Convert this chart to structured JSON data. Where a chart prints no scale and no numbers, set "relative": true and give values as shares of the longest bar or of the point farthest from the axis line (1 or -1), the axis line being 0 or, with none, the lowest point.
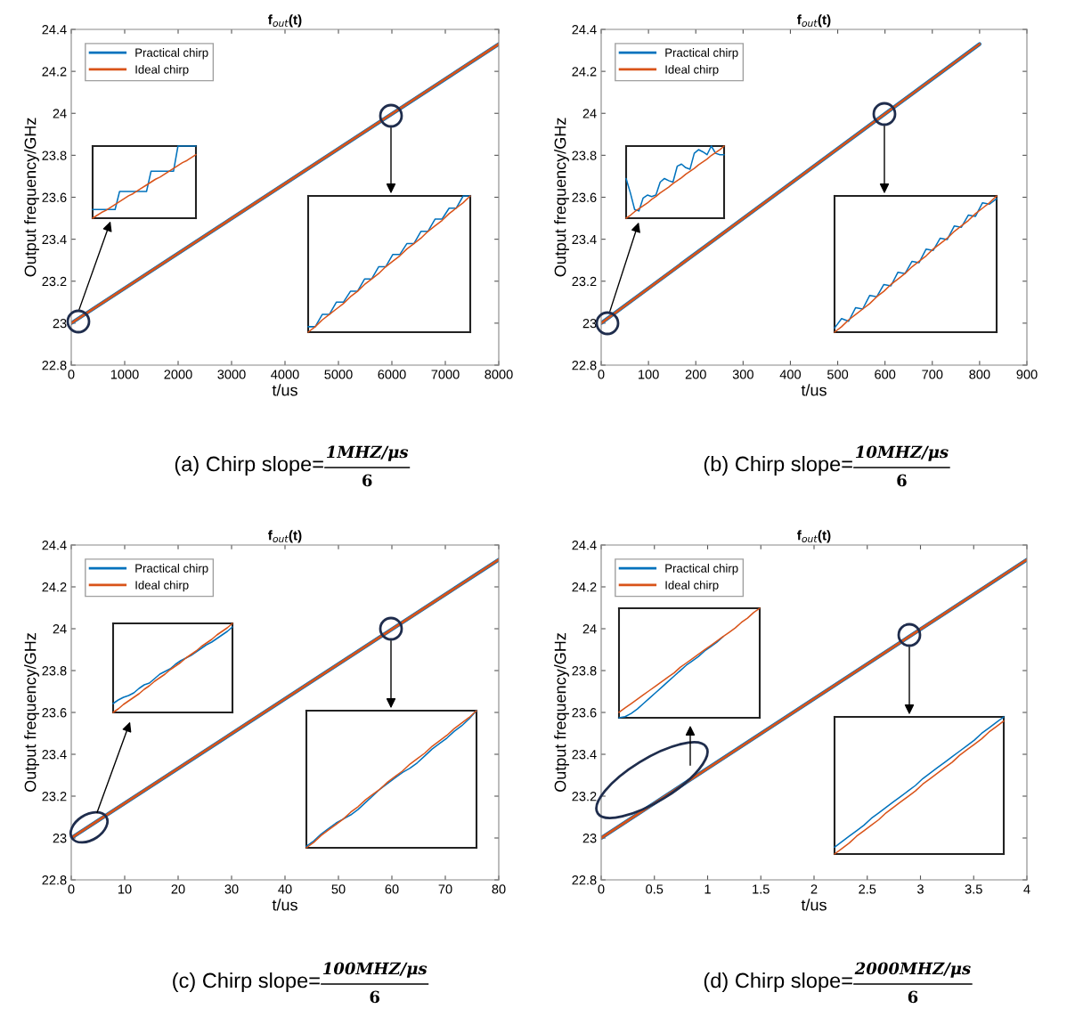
{
  "chart_data": [
    {
      "type": "line",
      "title": "f$_{out}$(t)",
      "xlabel": "t/us",
      "ylabel": "Output frequency/GHz",
      "xlim": [
        0,
        8000
      ],
      "xticks": [
        0,
        1000,
        2000,
        3000,
        4000,
        5000,
        6000,
        7000,
        8000
      ],
      "ylim": [
        22.8,
        24.4
      ],
      "yticks": [
        22.8,
        23,
        23.2,
        23.4,
        23.6,
        23.8,
        24,
        24.2,
        24.4
      ],
      "legend": "top left",
      "series": [
        {
          "name": "Practical chirp",
          "color": "#0072bd",
          "x": [
            0,
            8000
          ],
          "values": [
            23.0,
            24.33
          ]
        },
        {
          "name": "Ideal chirp",
          "color": "#d95319",
          "x": [
            0,
            8000
          ],
          "values": [
            23.0,
            24.33
          ]
        }
      ],
      "annotations": [
        "(a) Chirp slope=",
        "1MHZ/μs",
        "6"
      ]
    },
    {
      "type": "line",
      "title": "f$_{out}$(t)",
      "xlabel": "t/us",
      "ylabel": "Output frequency/GHz",
      "xlim": [
        0,
        900
      ],
      "xticks": [
        0,
        100,
        200,
        300,
        400,
        500,
        600,
        700,
        800,
        900
      ],
      "ylim": [
        22.8,
        24.4
      ],
      "yticks": [
        22.8,
        23,
        23.2,
        23.4,
        23.6,
        23.8,
        24,
        24.2,
        24.4
      ],
      "legend": "top left",
      "series": [
        {
          "name": "Practical chirp",
          "color": "#0072bd",
          "x": [
            0,
            800
          ],
          "values": [
            23.0,
            24.33
          ]
        },
        {
          "name": "Ideal chirp",
          "color": "#d95319",
          "x": [
            0,
            800
          ],
          "values": [
            23.0,
            24.33
          ]
        }
      ],
      "annotations": [
        "(b) Chirp slope=",
        "10MHZ/μs",
        "6"
      ]
    },
    {
      "type": "line",
      "relative": true,
      "tick_labels": false,
      "categories": [
        null,
        null,
        null,
        null,
        null,
        null,
        null,
        null,
        null,
        null,
        null,
        null,
        null,
        null,
        null,
        null,
        null,
        null,
        null,
        null,
        null,
        null,
        null,
        null
      ],
      "series": [
        {
          "color": "#0072bd",
          "values": [
            0.12,
            0.12,
            0.12,
            0.12,
            0.12,
            0.12,
            0.37,
            0.37,
            0.37,
            0.37,
            0.37,
            0.37,
            0.37,
            0.65,
            0.65,
            0.65,
            0.65,
            0.65,
            0.65,
            1.0,
            1.0,
            1.0,
            1.0,
            1.0
          ]
        },
        {
          "color": "#d95319",
          "values": [
            0,
            0.04,
            0.08,
            0.11,
            0.15,
            0.19,
            0.23,
            0.27,
            0.31,
            0.34,
            0.38,
            0.42,
            0.46,
            0.5,
            0.54,
            0.57,
            0.61,
            0.65,
            0.69,
            0.73,
            0.77,
            0.8,
            0.84,
            0.88
          ]
        }
      ]
    },
    {
      "type": "line",
      "relative": true,
      "tick_labels": false,
      "categories": [
        null,
        null,
        null,
        null,
        null,
        null,
        null,
        null,
        null,
        null,
        null,
        null,
        null,
        null,
        null,
        null,
        null,
        null,
        null,
        null,
        null,
        null,
        null,
        null
      ],
      "series": [
        {
          "color": "#0072bd",
          "values": [
            0.55,
            0.35,
            0.12,
            0.1,
            0.28,
            0.32,
            0.3,
            0.32,
            0.5,
            0.55,
            0.52,
            0.5,
            0.72,
            0.75,
            0.7,
            0.68,
            0.9,
            0.95,
            0.92,
            0.88,
            1.0,
            0.9,
            0.88,
            0.88
          ]
        },
        {
          "color": "#d95319",
          "values": [
            0,
            0.04,
            0.09,
            0.13,
            0.17,
            0.21,
            0.26,
            0.3,
            0.35,
            0.39,
            0.43,
            0.48,
            0.52,
            0.56,
            0.61,
            0.65,
            0.69,
            0.74,
            0.78,
            0.82,
            0.87,
            0.91,
            0.95,
            1.0
          ]
        }
      ]
    },
    {
      "type": "line",
      "relative": true,
      "tick_labels": false,
      "categories": [
        null,
        null,
        null,
        null,
        null,
        null,
        null,
        null,
        null,
        null,
        null,
        null,
        null,
        null,
        null,
        null,
        null,
        null,
        null,
        null,
        null,
        null,
        null,
        null
      ],
      "series": [
        {
          "color": "#0072bd",
          "values": [
            0.04,
            0.04,
            0.13,
            0.13,
            0.22,
            0.22,
            0.3,
            0.3,
            0.39,
            0.39,
            0.48,
            0.48,
            0.57,
            0.57,
            0.65,
            0.65,
            0.74,
            0.74,
            0.83,
            0.83,
            0.91,
            0.91,
            1.0,
            1.0
          ]
        },
        {
          "color": "#d95319",
          "values": [
            0,
            0.04,
            0.09,
            0.13,
            0.17,
            0.21,
            0.26,
            0.3,
            0.35,
            0.39,
            0.43,
            0.48,
            0.52,
            0.56,
            0.61,
            0.65,
            0.69,
            0.74,
            0.78,
            0.82,
            0.87,
            0.91,
            0.95,
            1.0
          ]
        }
      ]
    },
    {
      "type": "line",
      "relative": true,
      "tick_labels": false,
      "categories": [
        null,
        null,
        null,
        null,
        null,
        null,
        null,
        null,
        null,
        null,
        null,
        null,
        null,
        null,
        null,
        null,
        null,
        null,
        null,
        null,
        null,
        null,
        null,
        null
      ],
      "series": [
        {
          "color": "#0072bd",
          "values": [
            0.03,
            0.1,
            0.08,
            0.18,
            0.17,
            0.27,
            0.26,
            0.35,
            0.34,
            0.44,
            0.43,
            0.52,
            0.51,
            0.61,
            0.6,
            0.69,
            0.68,
            0.78,
            0.77,
            0.86,
            0.85,
            0.95,
            0.94,
            0.98
          ]
        },
        {
          "color": "#d95319",
          "values": [
            0,
            0.04,
            0.09,
            0.13,
            0.17,
            0.21,
            0.26,
            0.3,
            0.35,
            0.39,
            0.43,
            0.48,
            0.52,
            0.56,
            0.61,
            0.65,
            0.69,
            0.74,
            0.78,
            0.82,
            0.87,
            0.91,
            0.95,
            1.0
          ]
        }
      ]
    },
    {
      "type": "line",
      "title": "f$_{out}$(t)",
      "xlabel": "t/us",
      "ylabel": "Output frequency/GHz",
      "xlim": [
        0,
        80
      ],
      "xticks": [
        0,
        10,
        20,
        30,
        40,
        50,
        60,
        70,
        80
      ],
      "ylim": [
        22.8,
        24.4
      ],
      "yticks": [
        22.8,
        23,
        23.2,
        23.4,
        23.6,
        23.8,
        24,
        24.2,
        24.4
      ],
      "legend": "top left",
      "series": [
        {
          "name": "Practical chirp",
          "color": "#0072bd",
          "x": [
            0,
            80
          ],
          "values": [
            23.0,
            24.33
          ]
        },
        {
          "name": "Ideal chirp",
          "color": "#d95319",
          "x": [
            0,
            80
          ],
          "values": [
            23.0,
            24.33
          ]
        }
      ],
      "annotations": [
        "(c) Chirp slope=",
        "100MHZ/μs",
        "6"
      ]
    },
    {
      "type": "line",
      "title": "f$_{out}$(t)",
      "xlabel": "t/us",
      "ylabel": "Output frequency/GHz",
      "xlim": [
        0,
        4
      ],
      "xticks": [
        0,
        0.5,
        1,
        1.5,
        2,
        2.5,
        3,
        3.5,
        4
      ],
      "ylim": [
        22.8,
        24.4
      ],
      "yticks": [
        22.8,
        23,
        23.2,
        23.4,
        23.6,
        23.8,
        24,
        24.2,
        24.4
      ],
      "legend": "top left",
      "series": [
        {
          "name": "Practical chirp",
          "color": "#0072bd",
          "x": [
            0,
            4
          ],
          "values": [
            23.0,
            24.33
          ]
        },
        {
          "name": "Ideal chirp",
          "color": "#d95319",
          "x": [
            0,
            4
          ],
          "values": [
            23.0,
            24.33
          ]
        }
      ],
      "annotations": [
        "(d) Chirp slope=",
        "2000MHZ/μs",
        "6"
      ]
    },
    {
      "type": "line",
      "relative": true,
      "tick_labels": false,
      "categories": [
        null,
        null,
        null,
        null,
        null,
        null,
        null,
        null,
        null,
        null,
        null,
        null,
        null,
        null,
        null,
        null,
        null,
        null,
        null,
        null,
        null,
        null,
        null,
        null
      ],
      "series": [
        {
          "color": "#0072bd",
          "values": [
            0,
            0.01,
            0.04,
            0.08,
            0.13,
            0.18,
            0.23,
            0.28,
            0.33,
            0.38,
            0.43,
            0.48,
            0.52,
            0.56,
            0.61,
            0.65,
            0.69,
            0.74,
            null,
            null,
            null,
            null,
            null,
            null
          ]
        },
        {
          "color": "#d95319",
          "values": [
            0.05,
            0.09,
            0.13,
            0.17,
            0.21,
            0.25,
            0.29,
            0.33,
            0.37,
            0.41,
            0.46,
            0.5,
            0.54,
            0.58,
            0.62,
            0.66,
            0.7,
            0.74,
            0.78,
            0.82,
            0.87,
            0.91,
            0.96,
            1.0
          ]
        }
      ]
    },
    {
      "type": "line",
      "relative": true,
      "tick_labels": false,
      "categories": [
        null,
        null,
        null,
        null,
        null,
        null,
        null,
        null,
        null,
        null,
        null,
        null,
        null,
        null,
        null,
        null,
        null,
        null,
        null,
        null,
        null,
        null,
        null,
        null
      ],
      "series": [
        {
          "color": "#0072bd",
          "values": [
            0.1,
            0.14,
            0.17,
            0.19,
            0.22,
            0.27,
            0.31,
            0.33,
            0.38,
            0.43,
            0.46,
            0.49,
            0.54,
            0.58,
            0.61,
            0.64,
            0.68,
            0.72,
            0.76,
            0.79,
            0.83,
            0.87,
            0.91,
            0.96
          ]
        },
        {
          "color": "#d95319",
          "values": [
            0,
            0.04,
            0.09,
            0.13,
            0.17,
            0.21,
            0.26,
            0.3,
            0.35,
            0.39,
            0.43,
            0.48,
            0.52,
            0.56,
            0.61,
            0.65,
            0.69,
            0.74,
            0.78,
            0.82,
            0.87,
            0.91,
            0.95,
            1.0
          ]
        }
      ]
    },
    {
      "type": "line",
      "relative": true,
      "tick_labels": false,
      "categories": [
        null,
        null,
        null,
        null,
        null,
        null,
        null,
        null,
        null,
        null,
        null,
        null,
        null,
        null,
        null,
        null,
        null,
        null,
        null,
        null,
        null,
        null,
        null,
        null
      ],
      "series": [
        {
          "color": "#0072bd",
          "values": [
            0.01,
            0.05,
            0.1,
            0.14,
            0.18,
            0.21,
            0.24,
            0.28,
            0.33,
            0.38,
            0.43,
            0.47,
            0.51,
            0.55,
            0.58,
            0.62,
            0.67,
            0.72,
            0.76,
            0.8,
            0.85,
            0.89,
            0.94,
            1.0
          ]
        },
        {
          "color": "#d95319",
          "values": [
            0,
            0.04,
            0.09,
            0.13,
            0.17,
            0.21,
            0.26,
            0.3,
            0.35,
            0.39,
            0.43,
            0.48,
            0.52,
            0.56,
            0.61,
            0.65,
            0.69,
            0.74,
            0.78,
            0.82,
            0.87,
            0.91,
            0.95,
            1.0
          ]
        }
      ]
    },
    {
      "type": "line",
      "relative": true,
      "tick_labels": false,
      "categories": [
        null,
        null,
        null,
        null,
        null,
        null,
        null,
        null,
        null,
        null,
        null,
        null,
        null,
        null,
        null,
        null,
        null,
        null,
        null,
        null,
        null,
        null,
        null,
        null
      ],
      "series": [
        {
          "color": "#0072bd",
          "values": [
            0.05,
            0.09,
            0.13,
            0.17,
            0.21,
            0.26,
            0.3,
            0.34,
            0.38,
            0.42,
            0.46,
            0.5,
            0.55,
            0.59,
            0.63,
            0.67,
            0.71,
            0.75,
            0.79,
            0.83,
            0.88,
            0.92,
            0.96,
            1.0
          ]
        },
        {
          "color": "#d95319",
          "values": [
            0,
            0.04,
            0.08,
            0.13,
            0.17,
            0.21,
            0.25,
            0.3,
            0.34,
            0.38,
            0.42,
            0.46,
            0.51,
            0.55,
            0.59,
            0.63,
            0.67,
            0.72,
            0.76,
            0.8,
            0.84,
            0.89,
            0.93,
            0.97
          ]
        }
      ]
    }
  ]
}
